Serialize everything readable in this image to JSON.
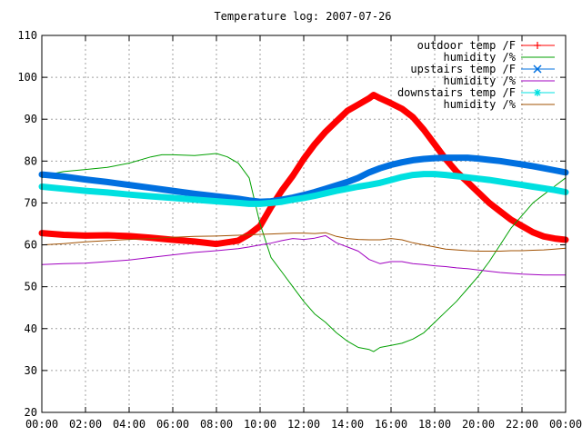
{
  "chart_data": {
    "type": "line",
    "title": "Temperature log: 2007-07-26",
    "xlabel": "",
    "ylabel": "",
    "x_ticks": [
      "00:00",
      "02:00",
      "04:00",
      "06:00",
      "08:00",
      "10:00",
      "12:00",
      "14:00",
      "16:00",
      "18:00",
      "20:00",
      "22:00",
      "00:00"
    ],
    "y_ticks": [
      "20",
      "30",
      "40",
      "50",
      "60",
      "70",
      "80",
      "90",
      "100",
      "110"
    ],
    "xlim": [
      0,
      24
    ],
    "ylim": [
      20,
      110
    ],
    "grid": true,
    "legend_position": "top-right",
    "series": [
      {
        "name": "outdoor temp /F",
        "color": "#ff0000",
        "marker": "plus",
        "x": [
          0,
          1,
          2,
          3,
          4,
          5,
          6,
          7,
          8,
          9,
          9.5,
          10,
          10.5,
          11,
          11.5,
          12,
          12.5,
          13,
          13.5,
          14,
          14.5,
          15,
          15.2,
          15.5,
          16,
          16.5,
          17,
          17.5,
          18,
          18.5,
          19,
          19.5,
          20,
          20.5,
          21,
          21.5,
          22,
          22.5,
          23,
          23.5,
          24
        ],
        "values": [
          62.8,
          62.4,
          62.2,
          62.3,
          62.1,
          61.7,
          61.2,
          60.8,
          60.2,
          61,
          62.5,
          64.5,
          69,
          73,
          76.5,
          80.5,
          84,
          87,
          89.5,
          92,
          93.5,
          95,
          95.8,
          95,
          93.8,
          92.5,
          90.5,
          87.5,
          84,
          80.5,
          77.5,
          75,
          72.5,
          70,
          68,
          66,
          64.5,
          63,
          62,
          61.5,
          61.2
        ]
      },
      {
        "name": "humidity /%",
        "color": "#00a000",
        "marker": "none",
        "x": [
          0,
          0.5,
          1,
          2,
          3,
          4,
          5,
          5.5,
          6,
          7,
          8,
          8.5,
          9,
          9.5,
          10,
          10.5,
          11,
          11.5,
          12,
          12.5,
          13,
          13.5,
          14,
          14.5,
          15,
          15.2,
          15.5,
          16,
          16.5,
          17,
          17.5,
          18,
          18.5,
          19,
          19.5,
          20,
          20.5,
          21,
          21.5,
          22,
          22.5,
          23,
          23.5,
          24
        ],
        "values": [
          76,
          77,
          77.5,
          78,
          78.5,
          79.5,
          81,
          81.5,
          81.5,
          81.3,
          81.8,
          81,
          79.5,
          76,
          65,
          57,
          53.5,
          50,
          46.5,
          43.5,
          41.5,
          39,
          37,
          35.5,
          35,
          34.5,
          35.5,
          36,
          36.5,
          37.5,
          39,
          41.5,
          44,
          46.5,
          49.5,
          52.5,
          56,
          60,
          64,
          67,
          70,
          72,
          74,
          76
        ]
      },
      {
        "name": "upstairs temp /F",
        "color": "#0070e0",
        "marker": "x",
        "x": [
          0,
          1,
          2,
          3,
          4,
          5,
          6,
          7,
          8,
          9,
          9.5,
          10,
          10.5,
          11,
          11.5,
          12,
          12.5,
          13,
          13.5,
          14,
          14.5,
          15,
          15.5,
          16,
          16.5,
          17,
          17.5,
          18,
          18.5,
          19,
          19.5,
          20,
          20.5,
          21,
          21.5,
          22,
          22.5,
          23,
          23.5,
          24
        ],
        "values": [
          76.8,
          76.3,
          75.6,
          75,
          74.3,
          73.6,
          72.9,
          72.2,
          71.6,
          71,
          70.6,
          70.3,
          70.4,
          70.8,
          71.3,
          71.9,
          72.6,
          73.4,
          74.2,
          75,
          76,
          77.3,
          78.3,
          79.1,
          79.7,
          80.2,
          80.5,
          80.7,
          80.8,
          80.8,
          80.8,
          80.6,
          80.3,
          80,
          79.6,
          79.2,
          78.8,
          78.3,
          77.8,
          77.3
        ]
      },
      {
        "name": "humidity /%",
        "color": "#a000c0",
        "marker": "none",
        "x": [
          0,
          1,
          2,
          3,
          4,
          5,
          6,
          7,
          8,
          9,
          9.5,
          10,
          10.5,
          11,
          11.5,
          12,
          12.5,
          13,
          13.5,
          14,
          14.5,
          15,
          15.5,
          16,
          16.5,
          17,
          17.5,
          18,
          18.5,
          19,
          19.5,
          20,
          20.5,
          21,
          21.5,
          22,
          22.5,
          23,
          23.5,
          24
        ],
        "values": [
          55.3,
          55.5,
          55.6,
          56,
          56.4,
          57,
          57.6,
          58.2,
          58.6,
          59.1,
          59.5,
          60,
          60.4,
          61,
          61.5,
          61.3,
          61.6,
          62.2,
          60.5,
          59.5,
          58.5,
          56.5,
          55.5,
          56,
          56,
          55.5,
          55.3,
          55,
          54.8,
          54.5,
          54.3,
          54,
          53.7,
          53.4,
          53.2,
          53,
          52.9,
          52.8,
          52.8,
          52.8
        ]
      },
      {
        "name": "downstairs temp /F",
        "color": "#00e0e0",
        "marker": "star",
        "x": [
          0,
          1,
          2,
          3,
          4,
          5,
          6,
          7,
          8,
          9,
          9.5,
          10,
          10.5,
          11,
          11.5,
          12,
          12.5,
          13,
          13.5,
          14,
          14.5,
          15,
          15.5,
          16,
          16.5,
          17,
          17.5,
          18,
          18.5,
          19,
          19.5,
          20,
          20.5,
          21,
          21.5,
          22,
          22.5,
          23,
          23.5,
          24
        ],
        "values": [
          73.9,
          73.4,
          72.9,
          72.5,
          72,
          71.6,
          71.2,
          70.8,
          70.4,
          70,
          69.8,
          69.8,
          70,
          70.3,
          70.8,
          71.2,
          71.7,
          72.3,
          72.9,
          73.4,
          73.9,
          74.3,
          74.8,
          75.5,
          76.2,
          76.7,
          76.9,
          76.9,
          76.7,
          76.4,
          76.1,
          75.8,
          75.5,
          75.1,
          74.7,
          74.3,
          73.9,
          73.5,
          73.1,
          72.6
        ]
      },
      {
        "name": "humidity /%",
        "color": "#a05000",
        "marker": "none",
        "x": [
          0,
          1,
          2,
          3,
          4,
          5,
          6,
          7,
          8,
          9,
          9.5,
          10,
          10.5,
          11,
          11.5,
          12,
          12.5,
          13,
          13.5,
          14,
          14.5,
          15,
          15.5,
          16,
          16.5,
          17,
          17.5,
          18,
          18.5,
          19,
          19.5,
          20,
          20.5,
          21,
          21.5,
          22,
          22.5,
          23,
          23.5,
          24
        ],
        "values": [
          60,
          60.3,
          60.7,
          61,
          61.3,
          61.5,
          61.8,
          62,
          62.1,
          62.3,
          62.4,
          62.5,
          62.6,
          62.7,
          62.8,
          62.8,
          62.7,
          62.9,
          62,
          61.5,
          61.3,
          61.2,
          61.2,
          61.5,
          61.2,
          60.5,
          60,
          59.5,
          59,
          58.8,
          58.6,
          58.5,
          58.5,
          58.5,
          58.6,
          58.6,
          58.7,
          58.8,
          59,
          59.2
        ]
      }
    ]
  }
}
